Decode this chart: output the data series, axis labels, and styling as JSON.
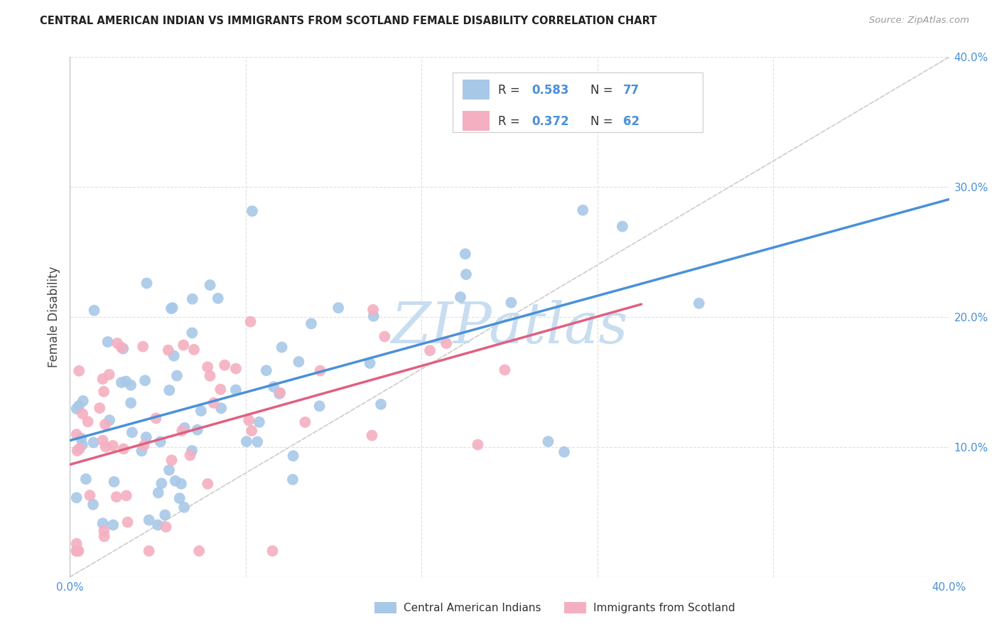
{
  "title": "CENTRAL AMERICAN INDIAN VS IMMIGRANTS FROM SCOTLAND FEMALE DISABILITY CORRELATION CHART",
  "source": "Source: ZipAtlas.com",
  "ylabel": "Female Disability",
  "xlim": [
    0.0,
    0.4
  ],
  "ylim": [
    0.0,
    0.4
  ],
  "xtick_positions": [
    0.0,
    0.08,
    0.16,
    0.24,
    0.32,
    0.4
  ],
  "ytick_positions": [
    0.1,
    0.2,
    0.3,
    0.4
  ],
  "blue_R": 0.583,
  "blue_N": 77,
  "pink_R": 0.372,
  "pink_N": 62,
  "blue_color": "#a8c8e8",
  "pink_color": "#f4afc0",
  "blue_line_color": "#4a90d9",
  "pink_line_color": "#e06080",
  "diagonal_color": "#cccccc",
  "legend_label_blue": "Central American Indians",
  "legend_label_pink": "Immigrants from Scotland",
  "watermark": "ZIPatlas",
  "watermark_color": "#c8ddf0",
  "grid_color": "#e0e0e0",
  "title_color": "#222222",
  "source_color": "#999999",
  "tick_color": "#4a90d9",
  "ylabel_color": "#444444"
}
